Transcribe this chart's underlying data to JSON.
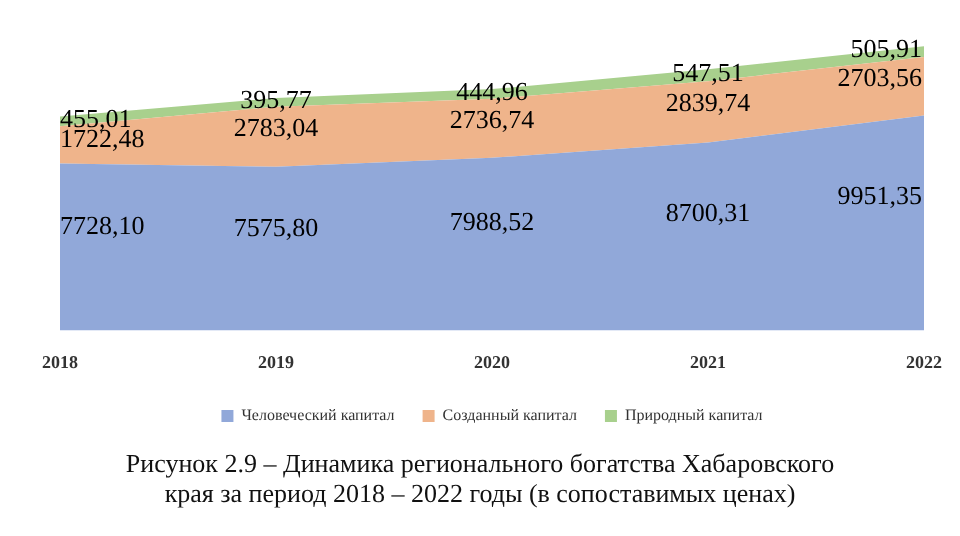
{
  "chart_data": {
    "type": "area",
    "stacked": true,
    "title": "Рисунок 2.9 – Динамика регионального богатства Хабаровского края за период 2018 – 2022 годы (в сопоставимых ценах)",
    "categories": [
      "2018",
      "2019",
      "2020",
      "2021",
      "2022"
    ],
    "tick_labels": "x",
    "legend": "bottom",
    "series": [
      {
        "name": "Человеческий капитал",
        "color": "#91a8d9",
        "values": [
          7728.1,
          7575.8,
          7988.52,
          8700.31,
          9951.35
        ],
        "value_labels": [
          "7728,10",
          "7575,80",
          "7988,52",
          "8700,31",
          "9951,35"
        ]
      },
      {
        "name": "Созданный капитал",
        "color": "#efb48b",
        "values": [
          1722.48,
          2783.04,
          2736.74,
          2839.74,
          2703.56
        ],
        "value_labels": [
          "1722,48",
          "2783,04",
          "2736,74",
          "2839,74",
          "2703,56"
        ]
      },
      {
        "name": "Природный капитал",
        "color": "#a8d08d",
        "values": [
          455.01,
          395.77,
          444.96,
          547.51,
          505.91
        ],
        "value_labels": [
          "455,01",
          "395,77",
          "444,96",
          "547,51",
          "505,91"
        ]
      }
    ]
  }
}
